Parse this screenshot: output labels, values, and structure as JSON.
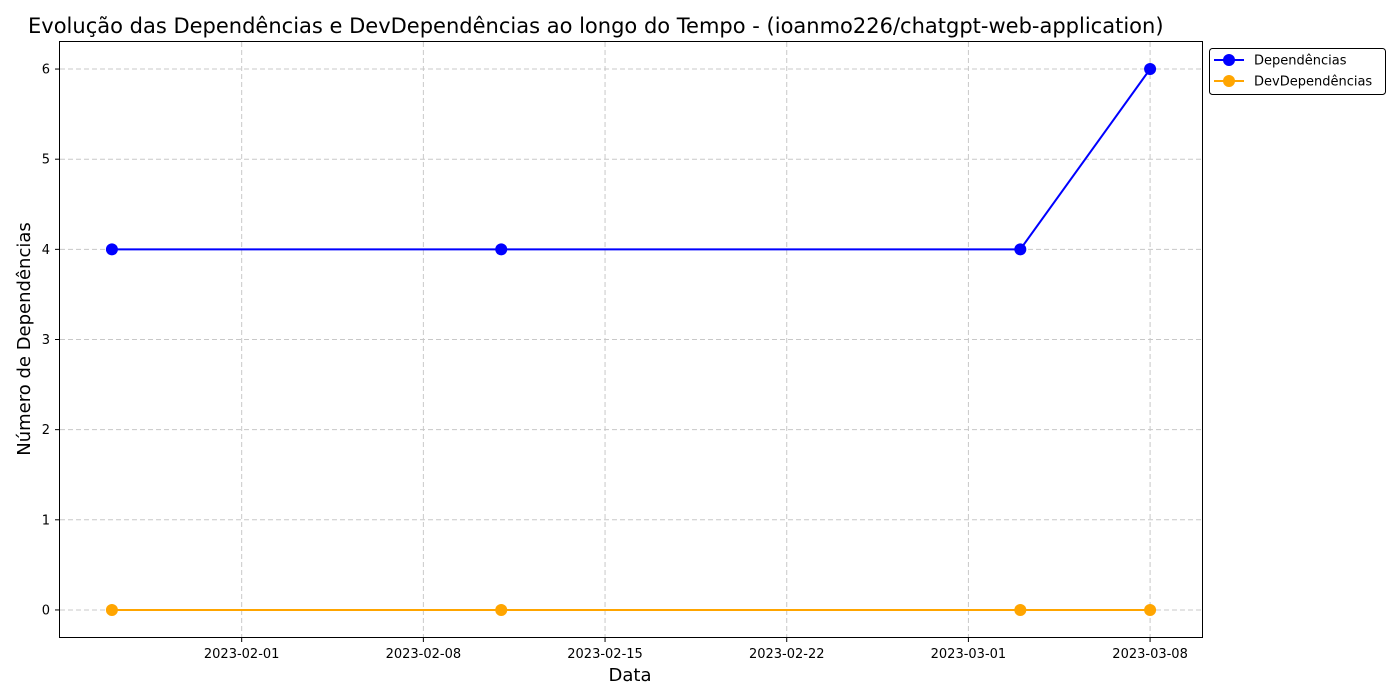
{
  "chart_data": {
    "type": "line",
    "title": "Evolução das Dependências e DevDependências ao longo do Tempo - (ioanmo226/chatgpt-web-application)",
    "xlabel": "Data",
    "ylabel": "Número de Dependências",
    "x": [
      "2023-01-27",
      "2023-02-11",
      "2023-03-03",
      "2023-03-08"
    ],
    "series": [
      {
        "name": "Dependências",
        "color": "#0000ff",
        "values": [
          4,
          4,
          4,
          6
        ]
      },
      {
        "name": "DevDependências",
        "color": "#ffa500",
        "values": [
          0,
          0,
          0,
          0
        ]
      }
    ],
    "x_ticks": [
      "2023-02-01",
      "2023-02-08",
      "2023-02-15",
      "2023-02-22",
      "2023-03-01",
      "2023-03-08"
    ],
    "y_ticks": [
      0,
      1,
      2,
      3,
      4,
      5,
      6
    ],
    "xlim": [
      "2023-01-25",
      "2023-03-10"
    ],
    "ylim": [
      -0.3,
      6.3
    ],
    "grid": true,
    "legend_position": "outside-top-right"
  }
}
